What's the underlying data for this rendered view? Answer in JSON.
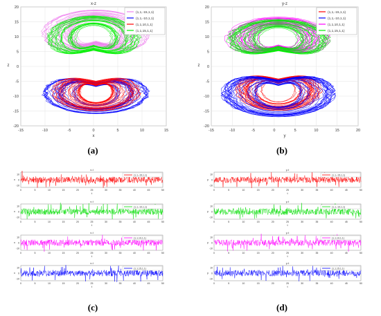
{
  "figure": {
    "panel_labels": [
      "(a)",
      "(b)",
      "(c)",
      "(d)"
    ]
  },
  "chart_data": [
    {
      "id": "a",
      "type": "scatter",
      "title": "x-z",
      "xlabel": "x",
      "ylabel": "z",
      "xlim": [
        -15,
        15
      ],
      "ylim": [
        -20,
        20
      ],
      "xticks": [
        "-15",
        "-10",
        "-5",
        "0",
        "5",
        "10",
        "15"
      ],
      "yticks": [
        "20",
        "15",
        "10",
        "5",
        "0",
        "-5",
        "-10",
        "-15",
        "-20"
      ],
      "grid": true,
      "legend_position": "top-right",
      "series": [
        {
          "name": "(1,1,-15,1,1)",
          "color": "#ee82ee",
          "lobe": "upper",
          "x_range": [
            -11,
            12
          ],
          "y_range": [
            3,
            19
          ]
        },
        {
          "name": "(1,1,-10,1,1)",
          "color": "#0000ff",
          "lobe": "lower",
          "x_range": [
            -11,
            12
          ],
          "y_range": [
            -16,
            -2
          ]
        },
        {
          "name": "(1,1,10,1,1)",
          "color": "#ff0000",
          "lobe": "lower",
          "x_range": [
            -9,
            10
          ],
          "y_range": [
            -15,
            -2
          ]
        },
        {
          "name": "(1,1,15,1,1)",
          "color": "#00ee00",
          "lobe": "upper",
          "x_range": [
            -10,
            10
          ],
          "y_range": [
            2,
            17
          ]
        }
      ]
    },
    {
      "id": "b",
      "type": "scatter",
      "title": "y-z",
      "xlabel": "y",
      "ylabel": "z",
      "xlim": [
        -15,
        20
      ],
      "ylim": [
        -20,
        20
      ],
      "xticks": [
        "-15",
        "-10",
        "-5",
        "0",
        "5",
        "10",
        "15",
        "20"
      ],
      "yticks": [
        "20",
        "15",
        "10",
        "5",
        "0",
        "-5",
        "-10",
        "-15",
        "-20"
      ],
      "grid": true,
      "legend_position": "top-right",
      "series": [
        {
          "name": "(1,1,-15,1,1)",
          "color": "#ff0000",
          "lobe": "lower",
          "x_range": [
            -10,
            12
          ],
          "y_range": [
            -15,
            -1
          ]
        },
        {
          "name": "(1,1,-10,1,1)",
          "color": "#0000ff",
          "lobe": "lower",
          "x_range": [
            -13,
            15
          ],
          "y_range": [
            -17,
            -1
          ]
        },
        {
          "name": "(1,1,10,1,1)",
          "color": "#ff00ff",
          "lobe": "upper",
          "x_range": [
            -13,
            15
          ],
          "y_range": [
            2,
            17
          ]
        },
        {
          "name": "(1,1,15,1,1)",
          "color": "#00ee00",
          "lobe": "upper",
          "x_range": [
            -12,
            14
          ],
          "y_range": [
            2,
            16
          ]
        }
      ]
    },
    {
      "id": "c",
      "type": "line",
      "subplots": [
        {
          "title": "x-t",
          "xlabel": "t",
          "ylabel": "x",
          "legend": "(1,1,-15,1,1)",
          "color": "#ff0000",
          "xlim": [
            0,
            50
          ],
          "yticks": [
            "10",
            "0",
            "-10"
          ]
        },
        {
          "title": "x-t",
          "xlabel": "t",
          "ylabel": "x",
          "legend": "(1,1,-10,1,1)",
          "color": "#00dd00",
          "xlim": [
            0,
            50
          ],
          "yticks": [
            "10",
            "0",
            "-10"
          ]
        },
        {
          "title": "x-t",
          "xlabel": "t",
          "ylabel": "x",
          "legend": "(1,1,10,1,1)",
          "color": "#ff00ff",
          "xlim": [
            0,
            50
          ],
          "yticks": [
            "10",
            "0",
            "-10"
          ]
        },
        {
          "title": "x-t",
          "xlabel": "t",
          "ylabel": "x",
          "legend": "(1,1,15,1,1)",
          "color": "#0000ff",
          "xlim": [
            0,
            50
          ],
          "yticks": [
            "10",
            "0",
            "-10"
          ]
        }
      ],
      "xticks": [
        "0",
        "5",
        "10",
        "15",
        "20",
        "25",
        "30",
        "35",
        "40",
        "45",
        "50"
      ]
    },
    {
      "id": "d",
      "type": "line",
      "subplots": [
        {
          "title": "y-t",
          "xlabel": "t",
          "ylabel": "y",
          "legend": "(1,1,-15,1,1)",
          "color": "#ff0000",
          "xlim": [
            0,
            50
          ],
          "yticks": [
            "10",
            "0",
            "-10"
          ]
        },
        {
          "title": "y-t",
          "xlabel": "t",
          "ylabel": "y",
          "legend": "(1,1,-10,1,1)",
          "color": "#00dd00",
          "xlim": [
            0,
            50
          ],
          "yticks": [
            "10",
            "0",
            "-10"
          ]
        },
        {
          "title": "y-t",
          "xlabel": "t",
          "ylabel": "y",
          "legend": "(1,1,10,1,1)",
          "color": "#ff00ff",
          "xlim": [
            0,
            50
          ],
          "yticks": [
            "10",
            "0",
            "-10"
          ]
        },
        {
          "title": "y-t",
          "xlabel": "t",
          "ylabel": "y",
          "legend": "(1,1,15,1,1)",
          "color": "#0000ff",
          "xlim": [
            0,
            50
          ],
          "yticks": [
            "10",
            "0",
            "-10"
          ]
        }
      ],
      "xticks": [
        "0",
        "5",
        "10",
        "15",
        "20",
        "25",
        "30",
        "35",
        "40",
        "45",
        "50"
      ]
    }
  ]
}
